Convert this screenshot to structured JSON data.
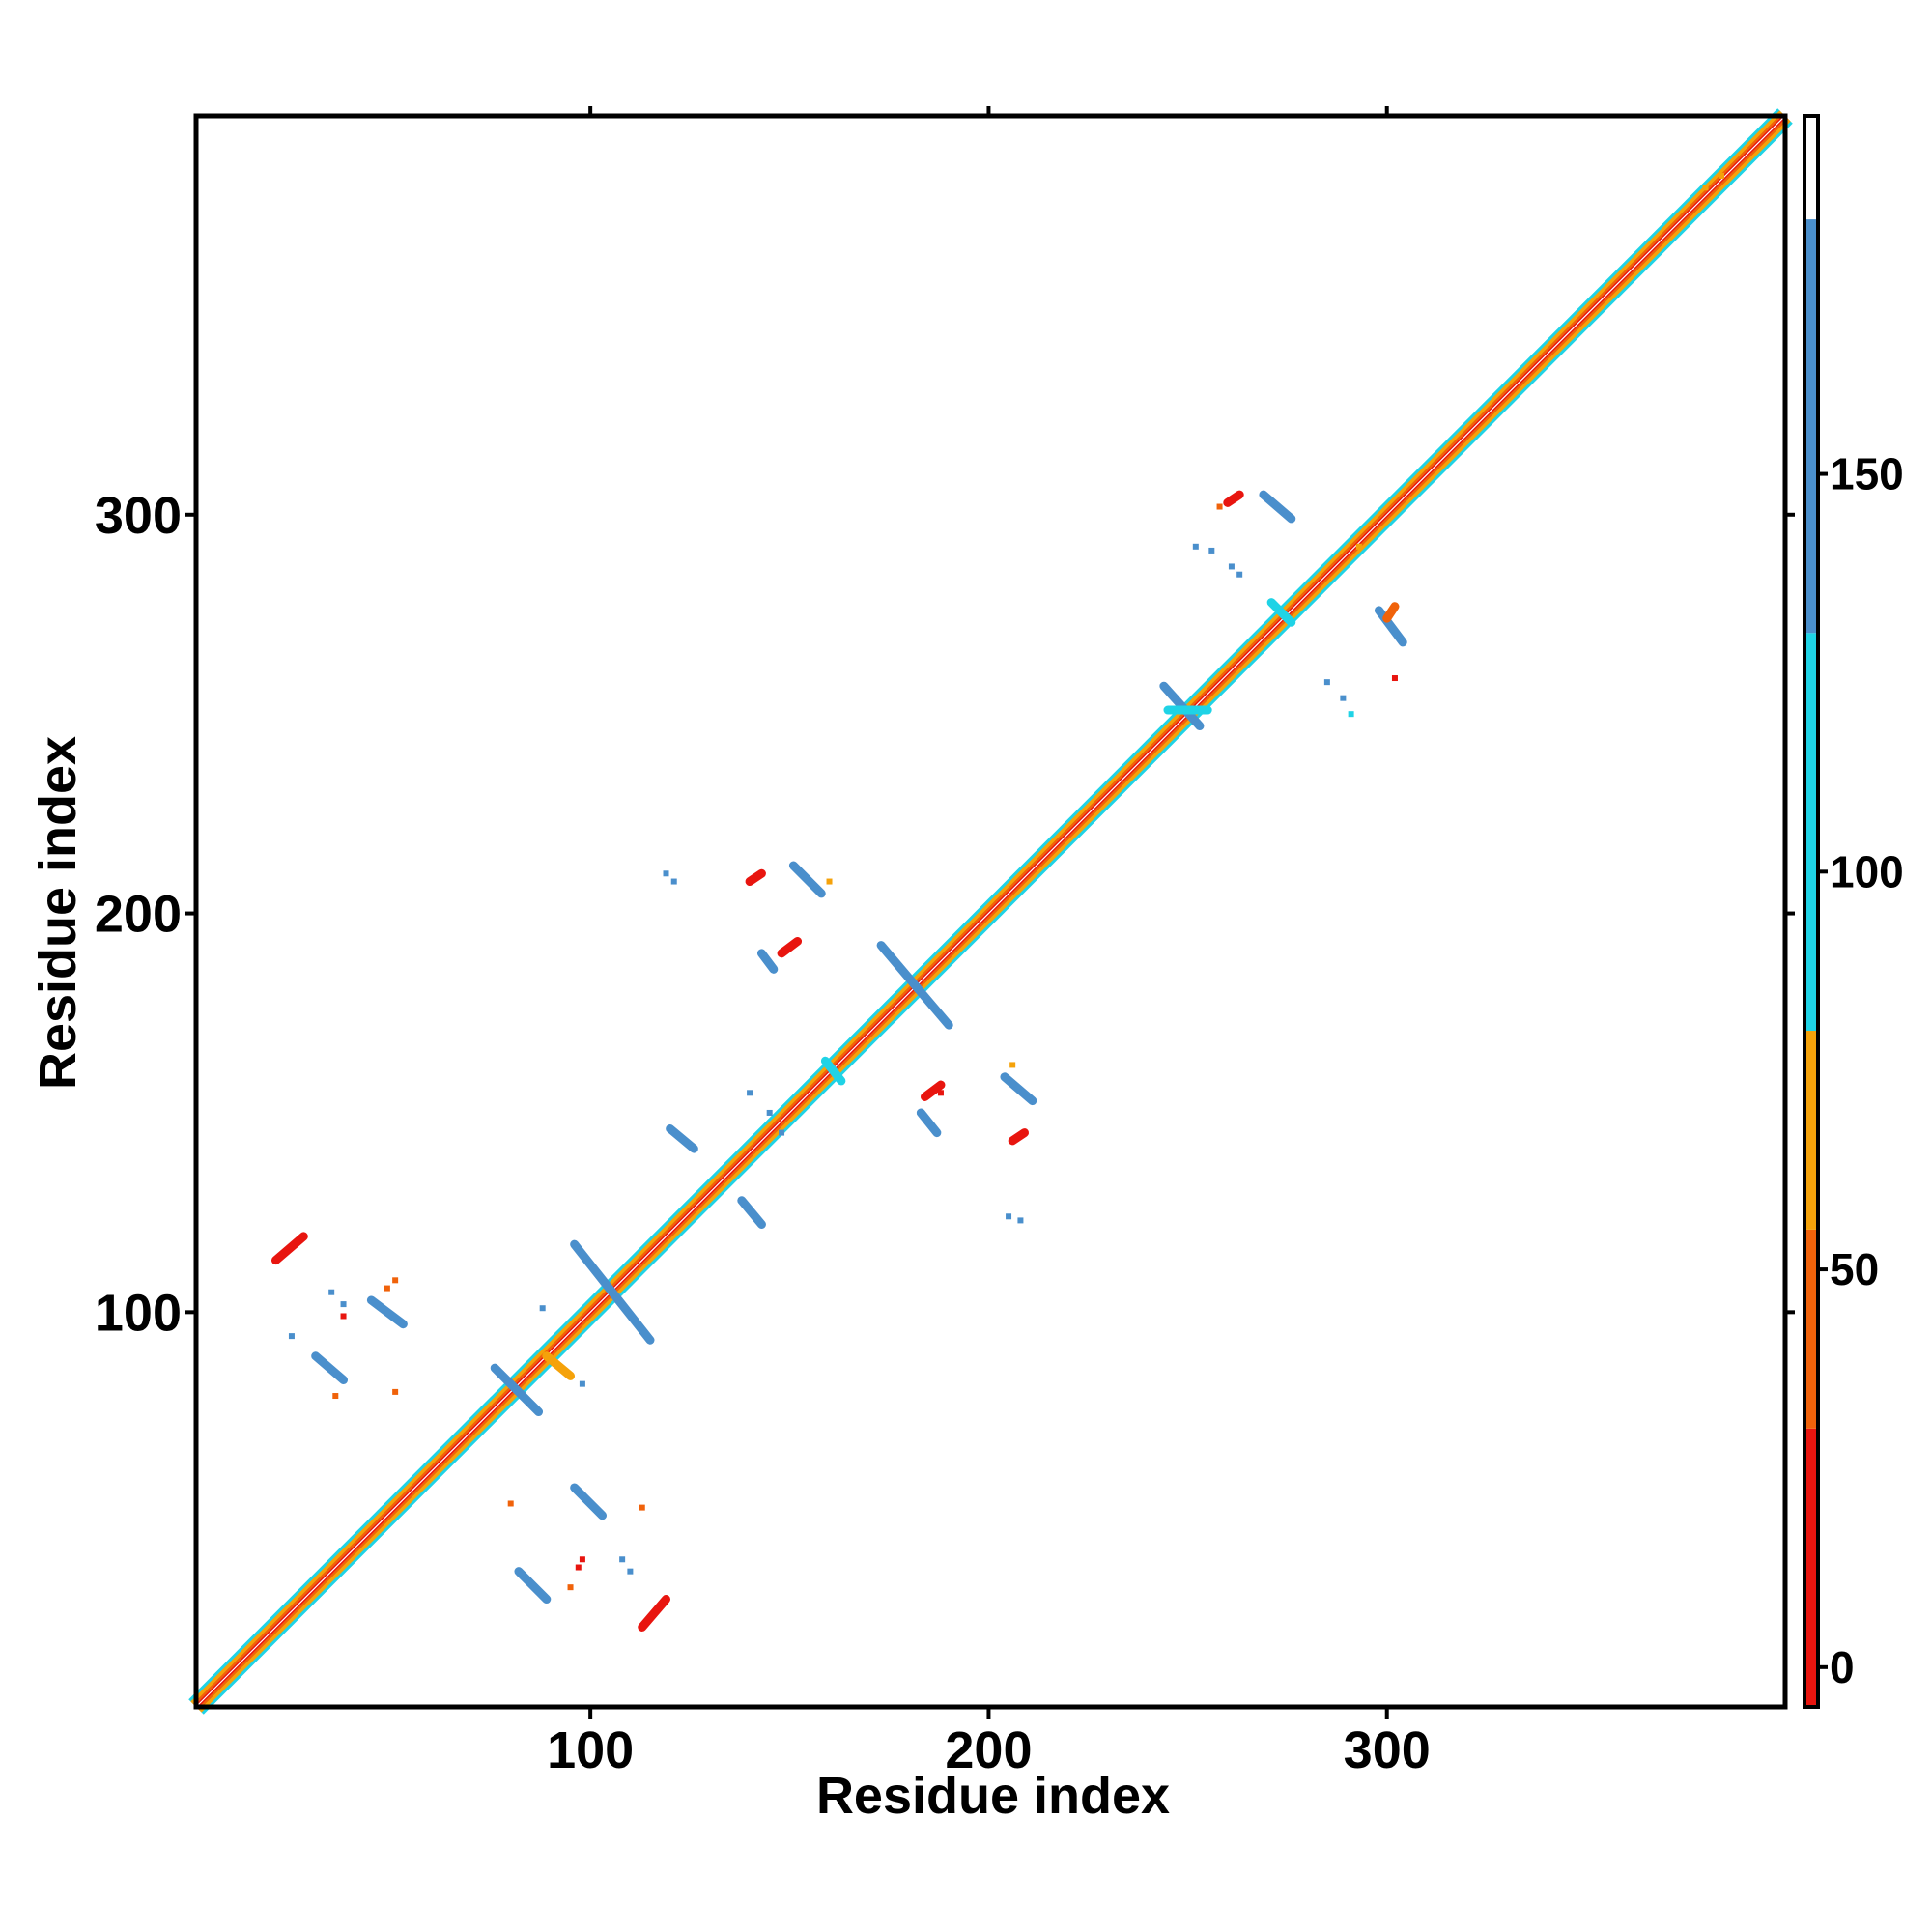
{
  "chart_data": {
    "type": "heatmap",
    "title": "",
    "xlabel": "Residue index",
    "ylabel": "Residue index",
    "xlim": [
      1,
      400
    ],
    "ylim": [
      1,
      400
    ],
    "x_ticks": [
      "100",
      "200",
      "300"
    ],
    "y_ticks": [
      "100",
      "200",
      "300"
    ],
    "colorbar": {
      "ticks": [
        "0",
        "50",
        "100",
        "150"
      ],
      "range": [
        -5,
        195
      ],
      "bands": [
        {
          "from": -5,
          "to": 30,
          "color": "#e8150f"
        },
        {
          "from": 30,
          "to": 55,
          "color": "#f0620a"
        },
        {
          "from": 55,
          "to": 80,
          "color": "#f5a20a"
        },
        {
          "from": 80,
          "to": 130,
          "color": "#1fd3e6"
        },
        {
          "from": 130,
          "to": 182,
          "color": "#4a8fcc"
        },
        {
          "from": 182,
          "to": 195,
          "color": "#ffffff"
        }
      ]
    },
    "colors": {
      "red": "#e8150f",
      "orange": "#f0620a",
      "amber": "#f5a20a",
      "cyan": "#1fd3e6",
      "blue": "#4a8fcc"
    },
    "diagonal": {
      "from": 1,
      "to": 400
    },
    "contact_segments": [
      {
        "x1": 96,
        "y1": 117,
        "x2": 115,
        "y2": 93,
        "value": 145
      },
      {
        "x1": 173,
        "y1": 192,
        "x2": 190,
        "y2": 172,
        "value": 145
      },
      {
        "x1": 76,
        "y1": 86,
        "x2": 87,
        "y2": 75,
        "value": 145
      },
      {
        "x1": 244,
        "y1": 257,
        "x2": 253,
        "y2": 247,
        "value": 145
      },
      {
        "x1": 31,
        "y1": 89,
        "x2": 38,
        "y2": 83,
        "value": 140
      },
      {
        "x1": 45,
        "y1": 103,
        "x2": 53,
        "y2": 97,
        "value": 140
      },
      {
        "x1": 82,
        "y1": 35,
        "x2": 89,
        "y2": 28,
        "value": 140
      },
      {
        "x1": 96,
        "y1": 56,
        "x2": 103,
        "y2": 49,
        "value": 140
      },
      {
        "x1": 151,
        "y1": 212,
        "x2": 158,
        "y2": 205,
        "value": 145
      },
      {
        "x1": 204,
        "y1": 159,
        "x2": 211,
        "y2": 153,
        "value": 145
      },
      {
        "x1": 269,
        "y1": 305,
        "x2": 276,
        "y2": 299,
        "value": 145
      },
      {
        "x1": 298,
        "y1": 276,
        "x2": 304,
        "y2": 268,
        "value": 145
      },
      {
        "x1": 120,
        "y1": 146,
        "x2": 126,
        "y2": 141,
        "value": 145
      },
      {
        "x1": 138,
        "y1": 128,
        "x2": 143,
        "y2": 122,
        "value": 145
      },
      {
        "x1": 143,
        "y1": 190,
        "x2": 146,
        "y2": 186,
        "value": 145
      },
      {
        "x1": 183,
        "y1": 150,
        "x2": 187,
        "y2": 145,
        "value": 145
      },
      {
        "x1": 245,
        "y1": 251,
        "x2": 255,
        "y2": 251,
        "value": 100
      },
      {
        "x1": 159,
        "y1": 163,
        "x2": 163,
        "y2": 158,
        "value": 100
      },
      {
        "x1": 271,
        "y1": 278,
        "x2": 276,
        "y2": 273,
        "value": 100
      },
      {
        "x1": 21,
        "y1": 113,
        "x2": 28,
        "y2": 119,
        "value": 5
      },
      {
        "x1": 113,
        "y1": 21,
        "x2": 119,
        "y2": 28,
        "value": 5
      },
      {
        "x1": 148,
        "y1": 190,
        "x2": 152,
        "y2": 193,
        "value": 10
      },
      {
        "x1": 140,
        "y1": 208,
        "x2": 143,
        "y2": 210,
        "value": 10
      },
      {
        "x1": 184,
        "y1": 154,
        "x2": 188,
        "y2": 157,
        "value": 10
      },
      {
        "x1": 206,
        "y1": 143,
        "x2": 209,
        "y2": 145,
        "value": 10
      },
      {
        "x1": 300,
        "y1": 274,
        "x2": 302,
        "y2": 277,
        "value": 40
      },
      {
        "x1": 260,
        "y1": 303,
        "x2": 263,
        "y2": 305,
        "value": 20
      },
      {
        "x1": 89,
        "y1": 89,
        "x2": 95,
        "y2": 84,
        "value": 60
      }
    ],
    "contact_dots": [
      {
        "x": 35,
        "y": 105,
        "value": 145
      },
      {
        "x": 38,
        "y": 102,
        "value": 145
      },
      {
        "x": 25,
        "y": 94,
        "value": 145
      },
      {
        "x": 38,
        "y": 99,
        "value": 10
      },
      {
        "x": 51,
        "y": 108,
        "value": 40
      },
      {
        "x": 49,
        "y": 106,
        "value": 40
      },
      {
        "x": 51,
        "y": 80,
        "value": 40
      },
      {
        "x": 36,
        "y": 79,
        "value": 40
      },
      {
        "x": 97,
        "y": 36,
        "value": 10
      },
      {
        "x": 98,
        "y": 38,
        "value": 10
      },
      {
        "x": 95,
        "y": 31,
        "value": 40
      },
      {
        "x": 80,
        "y": 52,
        "value": 40
      },
      {
        "x": 110,
        "y": 35,
        "value": 145
      },
      {
        "x": 108,
        "y": 38,
        "value": 145
      },
      {
        "x": 113,
        "y": 51,
        "value": 40
      },
      {
        "x": 119,
        "y": 210,
        "value": 145
      },
      {
        "x": 121,
        "y": 208,
        "value": 145
      },
      {
        "x": 160,
        "y": 208,
        "value": 60
      },
      {
        "x": 205,
        "y": 124,
        "value": 145
      },
      {
        "x": 208,
        "y": 123,
        "value": 145
      },
      {
        "x": 145,
        "y": 150,
        "value": 145
      },
      {
        "x": 148,
        "y": 145,
        "value": 145
      },
      {
        "x": 140,
        "y": 155,
        "value": 145
      },
      {
        "x": 188,
        "y": 155,
        "value": 10
      },
      {
        "x": 206,
        "y": 162,
        "value": 60
      },
      {
        "x": 88,
        "y": 101,
        "value": 145
      },
      {
        "x": 98,
        "y": 82,
        "value": 145
      },
      {
        "x": 256,
        "y": 291,
        "value": 145
      },
      {
        "x": 261,
        "y": 287,
        "value": 145
      },
      {
        "x": 263,
        "y": 285,
        "value": 145
      },
      {
        "x": 285,
        "y": 258,
        "value": 145
      },
      {
        "x": 289,
        "y": 254,
        "value": 145
      },
      {
        "x": 291,
        "y": 250,
        "value": 80
      },
      {
        "x": 302,
        "y": 259,
        "value": 10
      },
      {
        "x": 258,
        "y": 302,
        "value": 40
      },
      {
        "x": 252,
        "y": 292,
        "value": 145
      },
      {
        "x": 293,
        "y": 292,
        "value": 60
      },
      {
        "x": 380,
        "y": 382,
        "value": 60
      },
      {
        "x": 384,
        "y": 385,
        "value": 60
      }
    ]
  }
}
